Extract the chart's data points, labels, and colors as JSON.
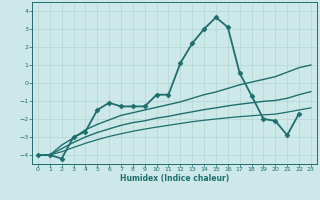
{
  "title": "",
  "xlabel": "Humidex (Indice chaleur)",
  "xlim": [
    -0.5,
    23.5
  ],
  "ylim": [
    -4.5,
    4.5
  ],
  "xticks": [
    0,
    1,
    2,
    3,
    4,
    5,
    6,
    7,
    8,
    9,
    10,
    11,
    12,
    13,
    14,
    15,
    16,
    17,
    18,
    19,
    20,
    21,
    22,
    23
  ],
  "yticks": [
    -4,
    -3,
    -2,
    -1,
    0,
    1,
    2,
    3,
    4
  ],
  "background_color": "#cde8e8",
  "grid_color": "#b8d8d8",
  "line_color": "#1e6e6e",
  "series": [
    {
      "x": [
        0,
        1,
        2,
        3,
        4,
        5,
        6,
        7,
        8,
        9,
        10,
        11,
        12,
        13,
        14,
        15,
        16,
        17,
        18,
        19,
        20,
        21,
        22,
        23
      ],
      "y": [
        -4.0,
        -4.0,
        -4.2,
        -3.0,
        -2.7,
        -1.5,
        -1.1,
        -1.3,
        -1.3,
        -1.3,
        -0.65,
        -0.65,
        1.1,
        2.2,
        3.0,
        3.65,
        3.1,
        0.55,
        -0.7,
        -2.0,
        -2.1,
        -2.9,
        -1.7,
        null
      ],
      "marker": "D",
      "markersize": 2.5,
      "linewidth": 1.3,
      "zorder": 5
    },
    {
      "x": [
        0,
        1,
        2,
        3,
        4,
        5,
        6,
        7,
        8,
        9,
        10,
        11,
        12,
        13,
        14,
        15,
        16,
        17,
        18,
        19,
        20,
        21,
        22,
        23
      ],
      "y": [
        -4.0,
        -4.0,
        -3.45,
        -3.05,
        -2.6,
        -2.3,
        -2.05,
        -1.8,
        -1.65,
        -1.5,
        -1.35,
        -1.2,
        -1.05,
        -0.85,
        -0.65,
        -0.5,
        -0.3,
        -0.1,
        0.05,
        0.2,
        0.35,
        0.6,
        0.85,
        1.0
      ],
      "marker": null,
      "linewidth": 1.0,
      "zorder": 3
    },
    {
      "x": [
        0,
        1,
        2,
        3,
        4,
        5,
        6,
        7,
        8,
        9,
        10,
        11,
        12,
        13,
        14,
        15,
        16,
        17,
        18,
        19,
        20,
        21,
        22,
        23
      ],
      "y": [
        -4.0,
        -4.0,
        -3.65,
        -3.3,
        -3.0,
        -2.75,
        -2.55,
        -2.35,
        -2.2,
        -2.1,
        -1.95,
        -1.85,
        -1.72,
        -1.6,
        -1.48,
        -1.38,
        -1.27,
        -1.18,
        -1.1,
        -1.02,
        -0.97,
        -0.85,
        -0.65,
        -0.48
      ],
      "marker": null,
      "linewidth": 1.0,
      "zorder": 3
    },
    {
      "x": [
        0,
        1,
        2,
        3,
        4,
        5,
        6,
        7,
        8,
        9,
        10,
        11,
        12,
        13,
        14,
        15,
        16,
        17,
        18,
        19,
        20,
        21,
        22,
        23
      ],
      "y": [
        -4.0,
        -4.0,
        -3.82,
        -3.58,
        -3.35,
        -3.15,
        -2.97,
        -2.82,
        -2.68,
        -2.56,
        -2.45,
        -2.35,
        -2.25,
        -2.15,
        -2.07,
        -2.0,
        -1.93,
        -1.87,
        -1.82,
        -1.77,
        -1.73,
        -1.62,
        -1.5,
        -1.38
      ],
      "marker": null,
      "linewidth": 0.9,
      "zorder": 2
    }
  ]
}
